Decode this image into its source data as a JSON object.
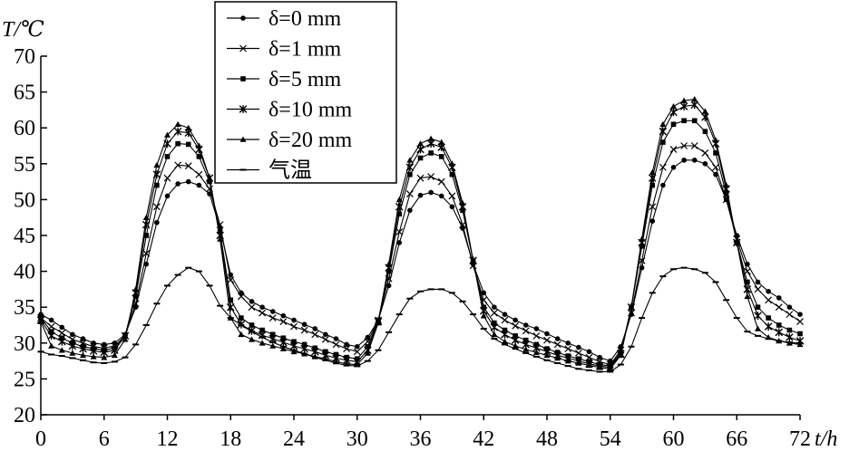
{
  "chart_data": {
    "type": "line",
    "ylabel": "T/℃",
    "xlabel": "t/h",
    "xlim": [
      0,
      72
    ],
    "ylim": [
      20,
      70
    ],
    "xticks": [
      "0",
      "6",
      "12",
      "18",
      "24",
      "30",
      "36",
      "42",
      "48",
      "54",
      "60",
      "66",
      "72"
    ],
    "yticks": [
      "20",
      "25",
      "30",
      "35",
      "40",
      "45",
      "50",
      "55",
      "60",
      "65",
      "70"
    ],
    "grid": false,
    "legend_position": "top-center",
    "x": [
      0,
      1,
      2,
      3,
      4,
      5,
      6,
      7,
      8,
      9,
      10,
      11,
      12,
      13,
      14,
      15,
      16,
      17,
      18,
      19,
      20,
      21,
      22,
      23,
      24,
      25,
      26,
      27,
      28,
      29,
      30,
      31,
      32,
      33,
      34,
      35,
      36,
      37,
      38,
      39,
      40,
      41,
      42,
      43,
      44,
      45,
      46,
      47,
      48,
      49,
      50,
      51,
      52,
      53,
      54,
      55,
      56,
      57,
      58,
      59,
      60,
      61,
      62,
      63,
      64,
      65,
      66,
      67,
      68,
      69,
      70,
      71,
      72
    ],
    "series": [
      {
        "name": "δ=0 mm",
        "marker": "dot",
        "values": [
          34.0,
          33.2,
          32.2,
          31.2,
          30.6,
          30.0,
          29.8,
          30.0,
          31.2,
          35.0,
          41.0,
          46.8,
          50.5,
          52.2,
          52.5,
          52.0,
          50.8,
          46.0,
          39.5,
          37.0,
          35.8,
          35.0,
          34.4,
          33.8,
          33.2,
          32.6,
          32.0,
          31.2,
          30.6,
          29.8,
          29.5,
          30.8,
          33.2,
          38.0,
          44.0,
          48.5,
          50.6,
          51.0,
          50.5,
          49.0,
          46.0,
          41.0,
          37.0,
          35.0,
          34.0,
          33.2,
          32.5,
          32.0,
          31.3,
          30.6,
          30.0,
          29.4,
          28.8,
          28.0,
          27.5,
          29.5,
          34.0,
          40.5,
          47.0,
          52.0,
          54.5,
          55.5,
          55.5,
          55.0,
          53.5,
          50.0,
          45.0,
          41.0,
          38.5,
          37.2,
          36.3,
          35.0,
          34.0
        ]
      },
      {
        "name": "δ=1 mm",
        "marker": "x",
        "values": [
          33.5,
          32.3,
          31.4,
          30.5,
          30.0,
          29.5,
          29.3,
          29.6,
          31.0,
          35.5,
          42.5,
          49.0,
          53.0,
          54.8,
          54.7,
          53.5,
          51.5,
          46.5,
          38.8,
          36.5,
          35.0,
          34.2,
          33.5,
          33.0,
          32.3,
          31.8,
          31.2,
          30.5,
          29.8,
          29.2,
          28.8,
          30.2,
          33.2,
          39.0,
          45.5,
          50.8,
          53.0,
          53.2,
          52.5,
          50.5,
          46.5,
          40.8,
          36.0,
          34.2,
          33.2,
          32.4,
          31.7,
          31.0,
          30.4,
          29.8,
          29.2,
          28.6,
          28.0,
          27.4,
          27.0,
          29.0,
          34.2,
          41.5,
          49.0,
          54.5,
          57.0,
          57.5,
          57.5,
          56.5,
          54.5,
          50.0,
          44.5,
          40.0,
          37.5,
          36.0,
          35.0,
          34.0,
          33.0
        ]
      },
      {
        "name": "δ=5 mm",
        "marker": "square",
        "values": [
          33.5,
          31.6,
          30.7,
          30.0,
          29.5,
          29.2,
          29.0,
          29.3,
          31.0,
          36.5,
          45.0,
          52.0,
          56.0,
          57.8,
          57.7,
          56.0,
          52.5,
          45.5,
          36.0,
          33.5,
          32.5,
          31.8,
          31.2,
          30.7,
          30.2,
          29.8,
          29.3,
          28.8,
          28.4,
          28.0,
          27.8,
          29.5,
          33.2,
          40.0,
          48.0,
          53.5,
          55.8,
          56.5,
          56.0,
          53.5,
          48.5,
          41.5,
          35.0,
          32.8,
          31.8,
          31.0,
          30.4,
          29.8,
          29.2,
          28.7,
          28.2,
          27.8,
          27.4,
          27.0,
          26.8,
          28.7,
          35.0,
          43.5,
          52.0,
          58.0,
          60.5,
          61.0,
          61.0,
          59.5,
          56.5,
          50.8,
          44.0,
          38.5,
          35.0,
          33.5,
          32.5,
          31.8,
          31.3
        ]
      },
      {
        "name": "δ=10 mm",
        "marker": "star",
        "values": [
          33.2,
          31.0,
          30.2,
          29.6,
          29.2,
          28.9,
          28.7,
          29.0,
          31.0,
          37.0,
          46.5,
          53.5,
          57.8,
          59.5,
          59.3,
          57.0,
          53.0,
          45.0,
          35.0,
          32.6,
          31.7,
          31.1,
          30.6,
          30.1,
          29.6,
          29.2,
          28.8,
          28.3,
          27.9,
          27.6,
          27.4,
          29.0,
          33.0,
          40.5,
          49.0,
          54.5,
          57.0,
          57.8,
          57.3,
          54.5,
          49.0,
          41.5,
          34.5,
          32.2,
          31.2,
          30.4,
          29.8,
          29.3,
          28.8,
          28.3,
          27.9,
          27.5,
          27.1,
          26.8,
          26.6,
          28.5,
          35.0,
          44.0,
          53.0,
          59.5,
          62.2,
          63.0,
          63.2,
          61.5,
          57.8,
          51.5,
          44.0,
          37.5,
          33.8,
          32.3,
          31.5,
          30.8,
          30.3
        ]
      },
      {
        "name": "δ=20 mm",
        "marker": "triangle",
        "values": [
          33.0,
          29.6,
          29.0,
          28.6,
          28.3,
          28.1,
          28.0,
          28.3,
          30.5,
          37.5,
          47.5,
          54.8,
          59.0,
          60.5,
          60.0,
          57.5,
          53.0,
          44.5,
          33.5,
          31.2,
          30.5,
          30.0,
          29.6,
          29.2,
          28.8,
          28.5,
          28.1,
          27.8,
          27.4,
          27.1,
          27.0,
          28.6,
          32.8,
          41.0,
          50.0,
          55.5,
          57.8,
          58.5,
          58.0,
          55.0,
          49.5,
          41.5,
          33.8,
          31.2,
          30.2,
          29.6,
          29.1,
          28.7,
          28.3,
          27.9,
          27.5,
          27.2,
          26.9,
          26.6,
          26.4,
          28.3,
          35.0,
          44.5,
          53.8,
          60.5,
          63.0,
          63.8,
          64.0,
          62.3,
          58.3,
          52.0,
          44.0,
          36.5,
          32.0,
          30.8,
          30.3,
          30.0,
          29.8
        ]
      },
      {
        "name": "气温",
        "marker": "dash",
        "values": [
          28.8,
          28.4,
          28.2,
          27.9,
          27.6,
          27.3,
          27.2,
          27.4,
          28.0,
          29.8,
          32.5,
          35.5,
          38.0,
          39.5,
          40.5,
          40.0,
          38.0,
          35.2,
          33.5,
          32.5,
          31.6,
          30.8,
          30.1,
          29.5,
          29.0,
          28.5,
          28.0,
          27.6,
          27.2,
          26.9,
          26.8,
          27.5,
          29.0,
          31.5,
          34.0,
          36.2,
          37.2,
          37.5,
          37.5,
          37.0,
          35.8,
          34.0,
          32.0,
          30.6,
          29.8,
          29.2,
          28.6,
          28.1,
          27.6,
          27.2,
          26.8,
          26.4,
          26.2,
          26.0,
          26.0,
          27.0,
          29.5,
          33.5,
          37.0,
          39.3,
          40.3,
          40.5,
          40.3,
          39.8,
          38.5,
          36.0,
          33.5,
          31.6,
          31.0,
          30.6,
          30.3,
          30.1,
          30.0
        ]
      }
    ]
  }
}
